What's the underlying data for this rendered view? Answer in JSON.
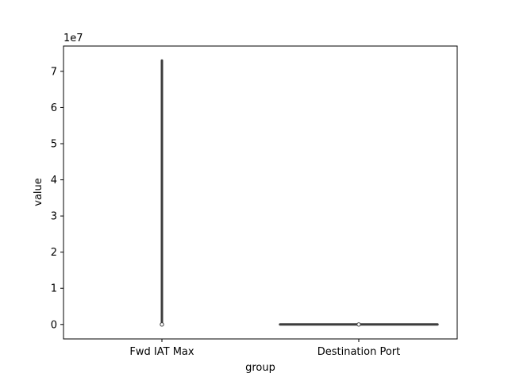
{
  "chart_data": {
    "type": "violin",
    "xlabel": "group",
    "ylabel": "value",
    "y_offset_label": "1e7",
    "y_scale_factor": 10000000,
    "ylim": [
      -4000000,
      77000000
    ],
    "yticks": [
      0,
      10000000,
      20000000,
      30000000,
      40000000,
      50000000,
      60000000,
      70000000
    ],
    "ytick_labels": [
      "0",
      "1",
      "2",
      "3",
      "4",
      "5",
      "6",
      "7"
    ],
    "categories": [
      "Fwd IAT Max",
      "Destination Port"
    ],
    "groups": [
      {
        "name": "Fwd IAT Max",
        "min": 0,
        "max": 73000000,
        "median": 0,
        "q1": 0,
        "q3": 0
      },
      {
        "name": "Destination Port",
        "min": 0,
        "max": 65535,
        "median": 80,
        "q1": 53,
        "q3": 443
      }
    ],
    "colors": {
      "violin_edge": "#3d3d3d",
      "median_fill": "#ffffff",
      "axis": "#000000"
    },
    "grid": false,
    "legend": "none"
  }
}
